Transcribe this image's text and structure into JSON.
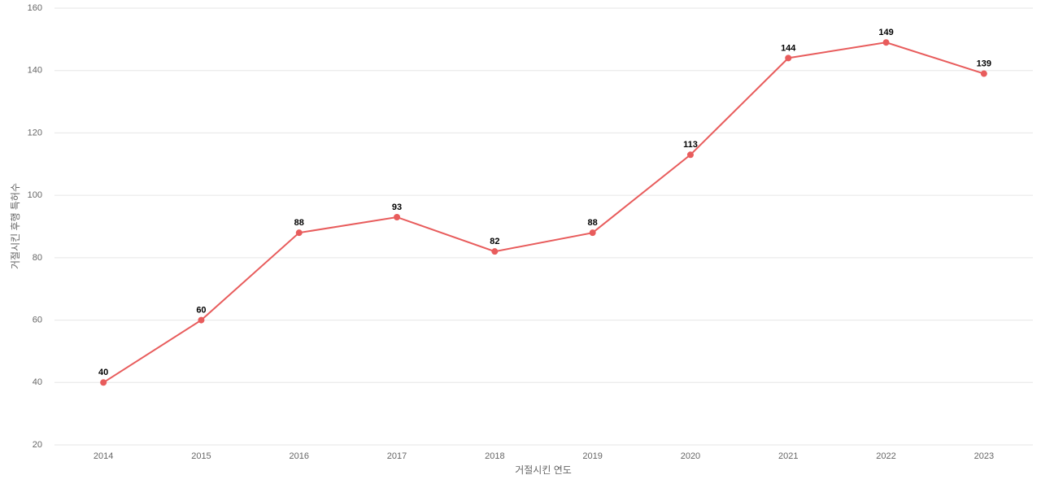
{
  "chart_data": {
    "type": "line",
    "x_label": "거절시킨 연도",
    "y_label": "거절시킨 후행 특허수",
    "categories": [
      "2014",
      "2015",
      "2016",
      "2017",
      "2018",
      "2019",
      "2020",
      "2021",
      "2022",
      "2023"
    ],
    "series": [
      {
        "color": "#e85c5c",
        "values": [
          40,
          60,
          88,
          93,
          82,
          88,
          113,
          144,
          149,
          139
        ]
      }
    ],
    "ylim": [
      20,
      160
    ],
    "yticks": [
      20,
      40,
      60,
      80,
      100,
      120,
      140,
      160
    ],
    "grid": true
  }
}
